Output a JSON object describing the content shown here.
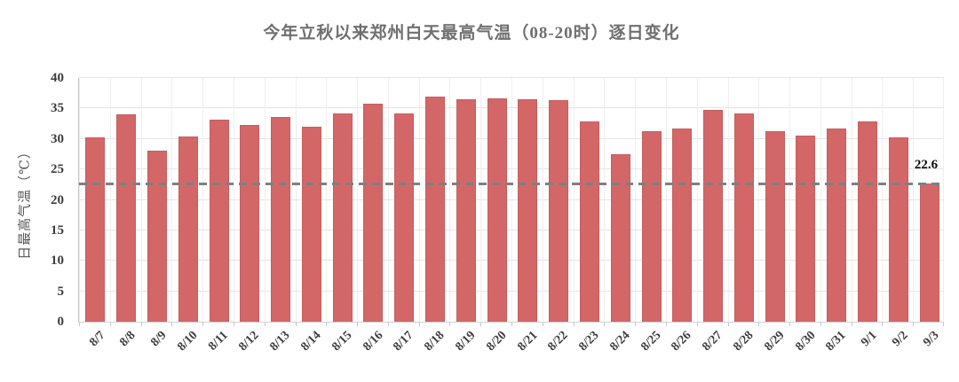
{
  "chart_data": {
    "type": "bar",
    "title": "今年立秋以来郑州白天最高气温（08-20时）逐日变化",
    "ylabel": "日最高气温（℃）",
    "xlabel": "",
    "categories": [
      "8/7",
      "8/8",
      "8/9",
      "8/10",
      "8/11",
      "8/12",
      "8/13",
      "8/14",
      "8/15",
      "8/16",
      "8/17",
      "8/18",
      "8/19",
      "8/20",
      "8/21",
      "8/22",
      "8/23",
      "8/24",
      "8/25",
      "8/26",
      "8/27",
      "8/28",
      "8/29",
      "8/30",
      "8/31",
      "9/1",
      "9/2",
      "9/3"
    ],
    "values": [
      30.1,
      33.9,
      28.0,
      30.2,
      33.0,
      32.2,
      33.5,
      31.8,
      34.1,
      35.6,
      34.1,
      36.8,
      36.3,
      36.5,
      36.4,
      36.2,
      32.7,
      27.3,
      31.2,
      31.6,
      34.6,
      34.0,
      31.1,
      30.4,
      31.6,
      32.8,
      30.1,
      22.6
    ],
    "ylim": [
      0,
      40
    ],
    "ytick_labels": [
      "0",
      "5",
      "10",
      "15",
      "20",
      "25",
      "30",
      "35",
      "40"
    ],
    "grid": "horizontal-and-vertical",
    "legend": "none",
    "bar_color": "#d36768",
    "ref_line": {
      "value": 22.6,
      "label": "22.6",
      "color": "#7f7f7f",
      "style": "dashed"
    }
  }
}
